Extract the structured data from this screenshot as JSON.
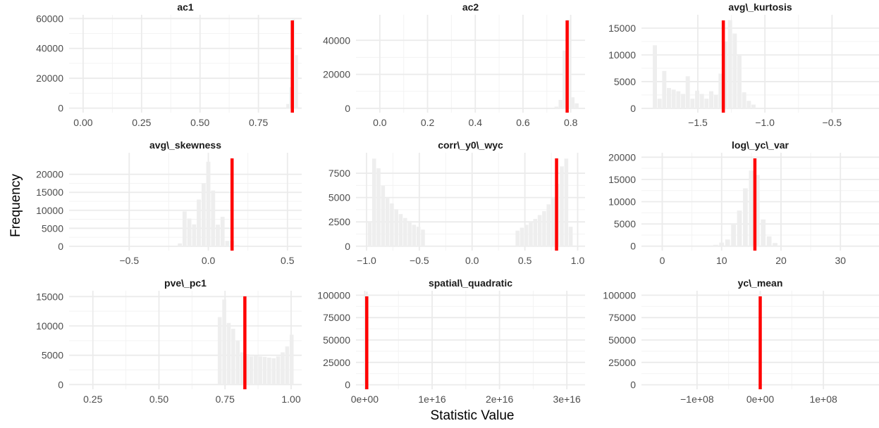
{
  "figure": {
    "xlabel": "Statistic Value",
    "ylabel": "Frequency",
    "colors": {
      "bar": "#eeeeee",
      "marker": "#ff0000",
      "grid": "#ebebeb",
      "text": "#4d4d4d",
      "title": "#1a1a1a"
    }
  },
  "chart_data": [
    {
      "type": "bar",
      "title": "ac1",
      "xlim": [
        -0.06,
        0.935
      ],
      "ylim": [
        -3000,
        62500
      ],
      "xticks": [
        0,
        0.25,
        0.5,
        0.75
      ],
      "xtick_labels": [
        "0.00",
        "0.25",
        "0.50",
        "0.75"
      ],
      "yticks": [
        0,
        20000,
        40000,
        60000
      ],
      "ytick_labels": [
        "0",
        "20000",
        "40000",
        "60000"
      ],
      "bin_width": 0.012,
      "bins": [
        [
          0.875,
          2800
        ],
        [
          0.888,
          14000
        ],
        [
          0.9,
          60000
        ],
        [
          0.913,
          35500
        ]
      ],
      "marker": 0.895
    },
    {
      "type": "bar",
      "title": "ac2",
      "xlim": [
        -0.1,
        0.86
      ],
      "ylim": [
        -2500,
        55000
      ],
      "xticks": [
        0,
        0.2,
        0.4,
        0.6,
        0.8
      ],
      "xtick_labels": [
        "0.0",
        "0.2",
        "0.4",
        "0.6",
        "0.8"
      ],
      "yticks": [
        0,
        20000,
        40000
      ],
      "ytick_labels": [
        "0",
        "20000",
        "40000"
      ],
      "bin_width": 0.016,
      "bins": [
        [
          0.74,
          1000
        ],
        [
          0.757,
          5000
        ],
        [
          0.774,
          34000
        ],
        [
          0.791,
          52000
        ],
        [
          0.808,
          6500
        ],
        [
          0.825,
          3000
        ]
      ],
      "marker": 0.785
    },
    {
      "type": "bar",
      "title": "avg\\_kurtosis",
      "xlim": [
        -1.92,
        -0.15
      ],
      "ylim": [
        -800,
        17500
      ],
      "xticks": [
        -1.5,
        -1,
        -0.5
      ],
      "xtick_labels": [
        "−1.5",
        "−1.0",
        "−0.5"
      ],
      "yticks": [
        0,
        5000,
        10000,
        15000
      ],
      "ytick_labels": [
        "0",
        "5000",
        "10000",
        "15000"
      ],
      "bin_width": 0.031,
      "bins": [
        [
          -1.82,
          11800
        ],
        [
          -1.785,
          1800
        ],
        [
          -1.75,
          7000
        ],
        [
          -1.715,
          3800
        ],
        [
          -1.68,
          3500
        ],
        [
          -1.645,
          3200
        ],
        [
          -1.61,
          2700
        ],
        [
          -1.575,
          6000
        ],
        [
          -1.54,
          1800
        ],
        [
          -1.505,
          3300
        ],
        [
          -1.47,
          2700
        ],
        [
          -1.435,
          1800
        ],
        [
          -1.4,
          3200
        ],
        [
          -1.365,
          2500
        ],
        [
          -1.33,
          6500
        ],
        [
          -1.295,
          12500
        ],
        [
          -1.26,
          16500
        ],
        [
          -1.225,
          14000
        ],
        [
          -1.19,
          10000
        ],
        [
          -1.155,
          3000
        ],
        [
          -1.12,
          1400
        ],
        [
          -1.085,
          700
        ]
      ],
      "marker": -1.31
    },
    {
      "type": "bar",
      "title": "avg\\_skewness",
      "xlim": [
        -0.88,
        0.59
      ],
      "ylim": [
        -1200,
        26000
      ],
      "xticks": [
        -0.5,
        0,
        0.5
      ],
      "xtick_labels": [
        "−0.5",
        "0.0",
        "0.5"
      ],
      "yticks": [
        0,
        5000,
        10000,
        15000,
        20000
      ],
      "ytick_labels": [
        "0",
        "5000",
        "10000",
        "15000",
        "20000"
      ],
      "bin_width": 0.026,
      "bins": [
        [
          -0.18,
          800
        ],
        [
          -0.15,
          9700
        ],
        [
          -0.12,
          7700
        ],
        [
          -0.09,
          6100
        ],
        [
          -0.06,
          13000
        ],
        [
          -0.03,
          17500
        ],
        [
          0.0,
          23500
        ],
        [
          0.03,
          15500
        ],
        [
          0.06,
          6000
        ],
        [
          0.09,
          8200
        ],
        [
          0.12,
          1500
        ],
        [
          0.15,
          1500
        ],
        [
          0.18,
          300
        ]
      ],
      "marker": 0.15
    },
    {
      "type": "bar",
      "title": "corr\\_y0\\_wyc",
      "xlim": [
        -1.1,
        1.07
      ],
      "ylim": [
        -450,
        9600
      ],
      "xticks": [
        -1,
        -0.5,
        0,
        0.5,
        1
      ],
      "xtick_labels": [
        "−1.0",
        "−0.5",
        "0.0",
        "0.5",
        "1.0"
      ],
      "yticks": [
        0,
        2500,
        5000,
        7500
      ],
      "ytick_labels": [
        "0",
        "2500",
        "5000",
        "7500"
      ],
      "bin_width": 0.037,
      "bins": [
        [
          -0.97,
          2500
        ],
        [
          -0.928,
          9000
        ],
        [
          -0.886,
          8000
        ],
        [
          -0.844,
          6200
        ],
        [
          -0.802,
          5000
        ],
        [
          -0.76,
          4400
        ],
        [
          -0.718,
          3800
        ],
        [
          -0.676,
          3300
        ],
        [
          -0.634,
          2900
        ],
        [
          -0.592,
          2600
        ],
        [
          -0.55,
          2200
        ],
        [
          -0.508,
          2000
        ],
        [
          -0.466,
          1700
        ],
        [
          0.43,
          1600
        ],
        [
          0.472,
          1900
        ],
        [
          0.514,
          2200
        ],
        [
          0.556,
          2500
        ],
        [
          0.598,
          2800
        ],
        [
          0.64,
          3200
        ],
        [
          0.682,
          3600
        ],
        [
          0.724,
          4300
        ],
        [
          0.766,
          5000
        ],
        [
          0.808,
          6400
        ],
        [
          0.85,
          8200
        ],
        [
          0.892,
          9000
        ],
        [
          0.934,
          2000
        ]
      ],
      "marker": 0.8
    },
    {
      "type": "bar",
      "title": "log\\_yc\\_var",
      "xlim": [
        -3.5,
        36.5
      ],
      "ylim": [
        -1000,
        21000
      ],
      "xticks": [
        0,
        10,
        20,
        30
      ],
      "xtick_labels": [
        "0",
        "10",
        "20",
        "30"
      ],
      "yticks": [
        0,
        5000,
        10000,
        15000,
        20000
      ],
      "ytick_labels": [
        "0",
        "5000",
        "10000",
        "15000",
        "20000"
      ],
      "bin_width": 0.8,
      "bins": [
        [
          9.0,
          300
        ],
        [
          10.0,
          800
        ],
        [
          11.0,
          1500
        ],
        [
          12.0,
          5000
        ],
        [
          13.0,
          8000
        ],
        [
          14.0,
          13000
        ],
        [
          15.0,
          17000
        ],
        [
          16.0,
          16000
        ],
        [
          17.0,
          6000
        ],
        [
          18.0,
          2200
        ],
        [
          19.0,
          700
        ]
      ],
      "marker": 15.6
    },
    {
      "type": "bar",
      "title": "pve\\_pc1",
      "xlim": [
        0.16,
        1.04
      ],
      "ylim": [
        -800,
        16000
      ],
      "xticks": [
        0.25,
        0.5,
        0.75,
        1
      ],
      "xtick_labels": [
        "0.25",
        "0.50",
        "0.75",
        "1.00"
      ],
      "yticks": [
        0,
        5000,
        10000,
        15000
      ],
      "ytick_labels": [
        "0",
        "5000",
        "10000",
        "15000"
      ],
      "bin_width": 0.015,
      "bins": [
        [
          0.73,
          11500
        ],
        [
          0.747,
          14500
        ],
        [
          0.764,
          10500
        ],
        [
          0.781,
          9500
        ],
        [
          0.798,
          7500
        ],
        [
          0.815,
          5500
        ],
        [
          0.832,
          5200
        ],
        [
          0.849,
          4800
        ],
        [
          0.866,
          5000
        ],
        [
          0.883,
          4800
        ],
        [
          0.9,
          4700
        ],
        [
          0.917,
          4600
        ],
        [
          0.934,
          4500
        ],
        [
          0.951,
          4800
        ],
        [
          0.968,
          5500
        ],
        [
          0.985,
          6500
        ],
        [
          1.002,
          8500
        ]
      ],
      "marker": 0.825
    },
    {
      "type": "bar",
      "title": "spatial\\_quadratic",
      "xlim": [
        -1300000000000000.0,
        3.27e+16
      ],
      "ylim": [
        -5000,
        105000
      ],
      "xticks": [
        0,
        1e+16,
        2e+16,
        3e+16
      ],
      "xtick_labels": [
        "0e+00",
        "1e+16",
        "2e+16",
        "3e+16"
      ],
      "yticks": [
        0,
        25000,
        50000,
        75000,
        100000
      ],
      "ytick_labels": [
        "0",
        "25000",
        "50000",
        "75000",
        "100000"
      ],
      "bin_width": 300000000000000.0,
      "bins": [
        [
          300000000000000.0,
          104000
        ]
      ],
      "marker": 300000000000000.0
    },
    {
      "type": "bar",
      "title": "yc\\_mean",
      "xlim": [
        -188000000.0,
        188000000.0
      ],
      "ylim": [
        -5000,
        105000
      ],
      "xticks": [
        -100000000.0,
        0,
        100000000.0
      ],
      "xtick_labels": [
        "−1e+08",
        "0e+00",
        "1e+08"
      ],
      "yticks": [
        0,
        25000,
        50000,
        75000,
        100000
      ],
      "ytick_labels": [
        "0",
        "25000",
        "50000",
        "75000",
        "100000"
      ],
      "bin_width": 2500000.0,
      "bins": [
        [
          0,
          104000
        ]
      ],
      "marker": 0
    }
  ]
}
